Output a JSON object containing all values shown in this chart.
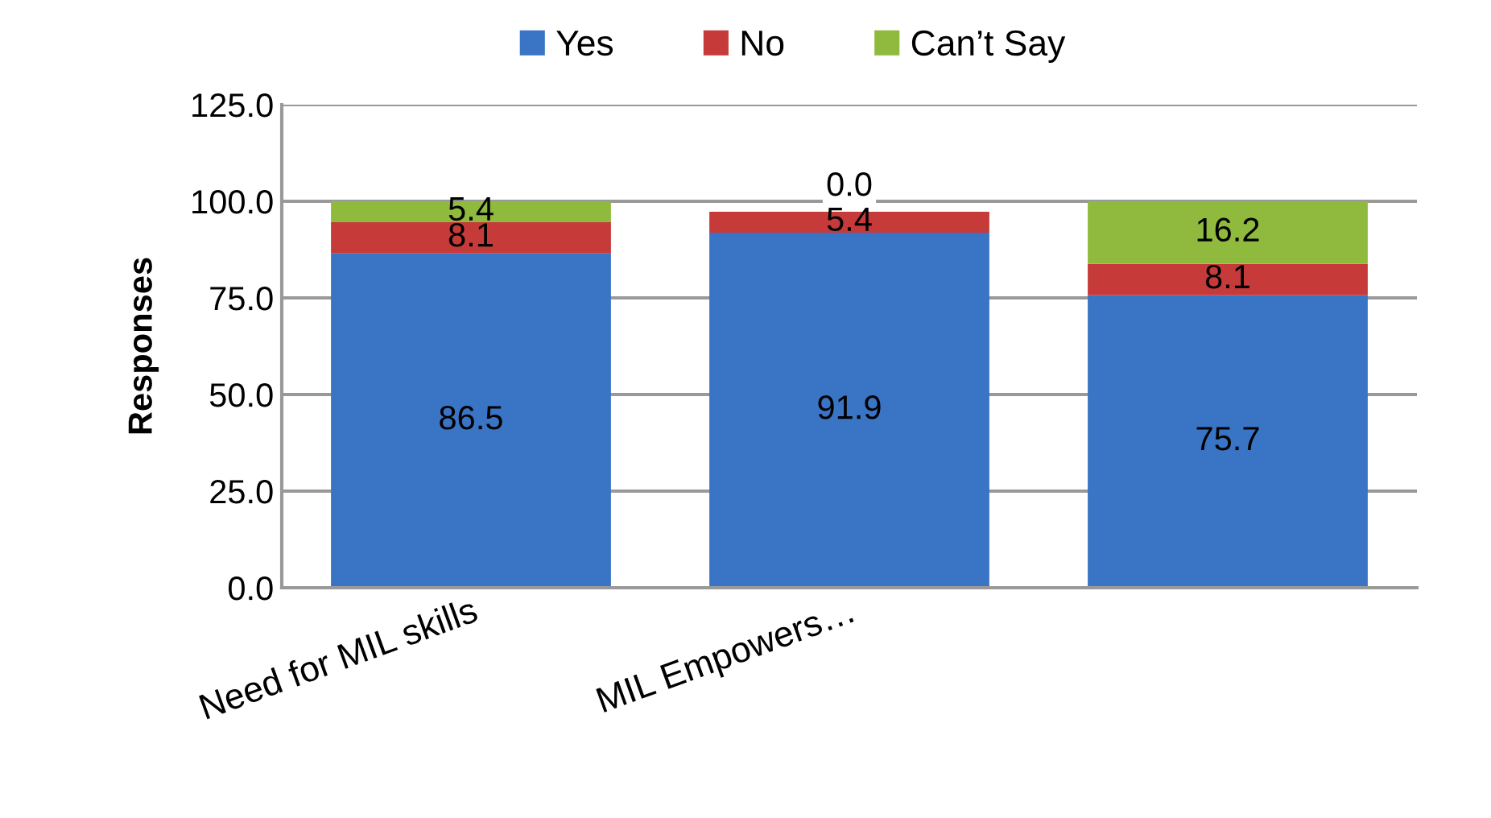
{
  "chart_data": {
    "type": "bar",
    "stacked": true,
    "ylabel": "Responses",
    "categories": [
      "Need for MIL skills",
      "MIL Empowers…",
      null
    ],
    "series": [
      {
        "name": "Yes",
        "color": "#3a74c4",
        "values": [
          86.5,
          91.9,
          75.7
        ],
        "value_labels": [
          "86.5",
          "91.9",
          "75.7"
        ]
      },
      {
        "name": "No",
        "color": "#c63a3a",
        "values": [
          8.1,
          5.4,
          8.1
        ],
        "value_labels": [
          "8.1",
          "5.4",
          "8.1"
        ]
      },
      {
        "name": "Can’t Say",
        "color": "#8fba3e",
        "values": [
          5.4,
          0.0,
          16.2
        ],
        "value_labels": [
          "5.4",
          "0.0",
          "16.2"
        ]
      }
    ],
    "ylim": [
      0,
      125
    ],
    "yticks": [
      {
        "value": 0,
        "label": "0.0"
      },
      {
        "value": 25,
        "label": "25.0"
      },
      {
        "value": 50,
        "label": "50.0"
      },
      {
        "value": 75,
        "label": "75.0"
      },
      {
        "value": 100,
        "label": "100.0"
      },
      {
        "value": 125,
        "label": "125.0"
      }
    ],
    "grid": "y",
    "legend": "top"
  }
}
